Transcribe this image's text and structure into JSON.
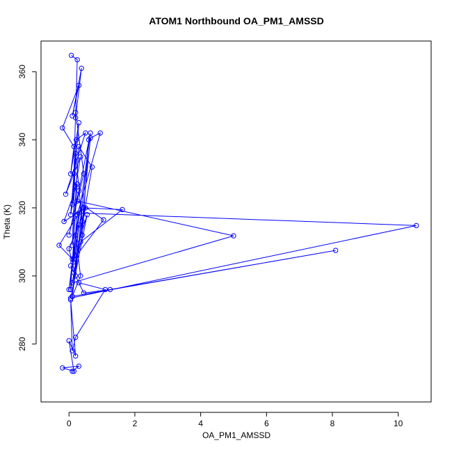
{
  "chart_data": {
    "type": "line",
    "title": "ATOM1 Northbound OA_PM1_AMSSD",
    "xlabel": "OA_PM1_AMSSD",
    "ylabel": "Theta (K)",
    "xlim": [
      -0.85,
      11.0
    ],
    "ylim": [
      263.0,
      369.0
    ],
    "x_ticks": [
      0,
      2,
      4,
      6,
      8,
      10
    ],
    "y_ticks": [
      280,
      300,
      320,
      340,
      360
    ],
    "grid": false,
    "legend": "none",
    "color": "#0000ff",
    "series": [
      {
        "x": [
          0.07,
          0.25,
          0.2,
          0.38,
          0.1,
          0.3,
          -0.2,
          0.15,
          0.05,
          0.3,
          0.1,
          0.22,
          0.5,
          -0.1,
          0.35,
          0.05,
          0.15,
          0.2,
          0.45,
          0.0,
          0.3,
          0.65,
          0.12,
          0.25,
          0.95,
          0.65,
          0.4,
          0.2,
          0.1,
          0.3,
          0.7,
          0.15,
          0.5,
          -0.15,
          0.25,
          0.05,
          0.4,
          0.6,
          0.2,
          0.0,
          0.3,
          0.1,
          0.45,
          1.62,
          0.35,
          0.1,
          5.0,
          0.25,
          1.05,
          0.15,
          0.55,
          0.05,
          10.55,
          0.3,
          0.1,
          -0.3,
          0.4,
          0.0,
          0.2,
          0.35,
          0.1,
          8.1,
          1.25,
          0.45,
          0.05,
          0.3,
          1.1,
          0.2,
          0.1,
          0.05,
          0.2,
          0.0,
          0.15,
          -0.2,
          0.3,
          0.1
        ],
        "y": [
          364.8,
          363.5,
          346.5,
          361.0,
          347.0,
          356.0,
          343.5,
          338.0,
          330.0,
          345.0,
          321.0,
          340.0,
          342.0,
          324.0,
          335.0,
          318.0,
          330.0,
          348.0,
          330.0,
          312.0,
          325.0,
          342.0,
          304.0,
          318.0,
          342.0,
          340.5,
          316.0,
          336.0,
          309.0,
          338.0,
          332.0,
          301.0,
          320.0,
          316.0,
          327.0,
          296.0,
          312.0,
          340.0,
          300.0,
          308.0,
          315.0,
          294.0,
          320.0,
          319.5,
          310.0,
          298.0,
          311.8,
          322.0,
          316.5,
          305.0,
          318.0,
          293.5,
          314.8,
          318.5,
          305.0,
          309.0,
          320.0,
          296.0,
          312.0,
          300.0,
          294.0,
          307.5,
          296.0,
          295.0,
          303.0,
          298.0,
          296.0,
          282.0,
          278.0,
          293.0,
          276.5,
          281.0,
          272.0,
          273.0,
          273.5,
          272.0
        ]
      }
    ]
  }
}
